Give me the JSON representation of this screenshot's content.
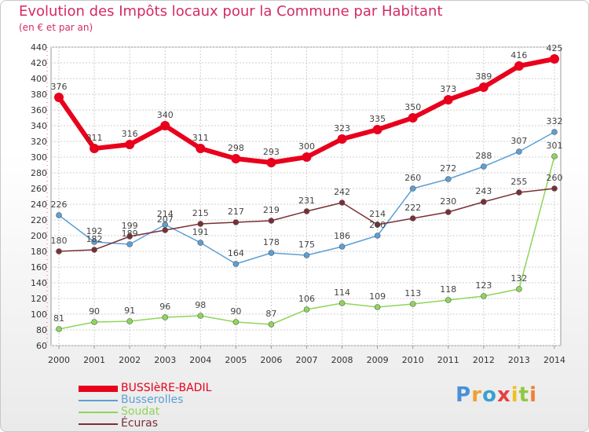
{
  "chart_data": {
    "type": "line",
    "title": "Evolution des Impôts locaux pour la Commune par Habitant",
    "subtitle": "(en € et par an)",
    "x": [
      "2000",
      "2001",
      "2002",
      "2003",
      "2004",
      "2005",
      "2006",
      "2007",
      "2008",
      "2009",
      "2010",
      "2011",
      "2012",
      "2013",
      "2014"
    ],
    "ylim": [
      60,
      440
    ],
    "yticks": [
      60,
      80,
      100,
      120,
      140,
      160,
      180,
      200,
      220,
      240,
      260,
      280,
      300,
      320,
      340,
      360,
      380,
      400,
      420,
      440
    ],
    "grid": true,
    "legend_position": "bottom-left",
    "series": [
      {
        "name": "BUSSIèRE-BADIL",
        "color": "#e8001c",
        "values": [
          376,
          311,
          316,
          340,
          311,
          298,
          293,
          300,
          323,
          335,
          350,
          373,
          389,
          416,
          425
        ]
      },
      {
        "name": "Busserolles",
        "color": "#5c9fd4",
        "values": [
          226,
          192,
          189,
          214,
          191,
          164,
          178,
          175,
          186,
          200,
          260,
          272,
          288,
          307,
          332
        ]
      },
      {
        "name": "Soudat",
        "color": "#8ed65a",
        "values": [
          81,
          90,
          91,
          96,
          98,
          90,
          87,
          106,
          114,
          109,
          113,
          118,
          123,
          132,
          301
        ]
      },
      {
        "name": "Écuras",
        "color": "#7a2f36",
        "values": [
          180,
          182,
          199,
          207,
          215,
          217,
          219,
          231,
          242,
          214,
          222,
          230,
          243,
          255,
          260
        ]
      }
    ]
  },
  "brand": {
    "letters": [
      "P",
      "r",
      "o",
      "x",
      "i",
      "t",
      "i"
    ],
    "colors": [
      "#4a8fd8",
      "#f0a030",
      "#3aa0d0",
      "#e84040",
      "#f0c020",
      "#90c840",
      "#f08030"
    ]
  }
}
